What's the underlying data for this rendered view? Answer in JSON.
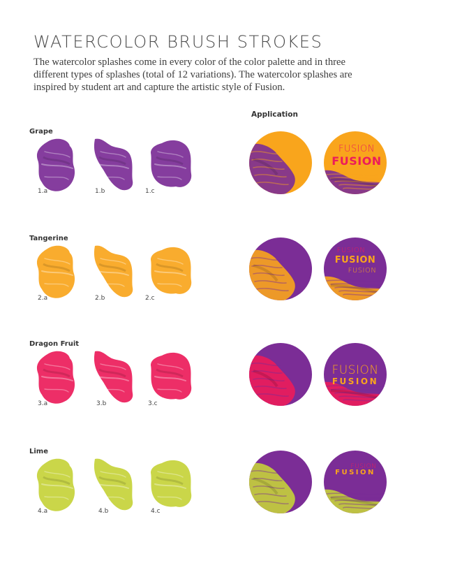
{
  "page": {
    "title": "WATERCOLOR BRUSH STROKES",
    "intro": "The watercolor splashes come in every color of the color palette and in three different types of splashes (total of 12 variations). The watercolor splashes are inspired by student art and capture the artistic style of Fusion.",
    "application_heading": "Application"
  },
  "colors": {
    "grape": "#7b2d96",
    "tangerine": "#f9a51c",
    "dragon_fruit": "#ec1c5a",
    "lime": "#c5d23a"
  },
  "sections": [
    {
      "name": "Grape",
      "color": "#7b2d96",
      "labels": [
        "1.a",
        "1.b",
        "1.c"
      ],
      "app1": {
        "bg": "#f9a51c",
        "splash": "#7b2d96"
      },
      "app2": {
        "bg": "#f9a51c",
        "splash": "#7b2d96",
        "lines": [
          "FUSION",
          "FUSION"
        ],
        "line_colors": [
          "#ec1c5a",
          "#ec1c5a"
        ]
      }
    },
    {
      "name": "Tangerine",
      "color": "#f9a51c",
      "labels": [
        "2.a",
        "2.b",
        "2.c"
      ],
      "app1": {
        "bg": "#7b2d96",
        "splash": "#f9a51c"
      },
      "app2": {
        "bg": "#7b2d96",
        "splash": "#f9a51c",
        "lines": [
          "FUSION",
          "FUSION",
          "FUSION"
        ],
        "line_colors": [
          "#ec1c5a",
          "#f9a51c",
          "#f9a51c"
        ]
      }
    },
    {
      "name": "Dragon Fruit",
      "color": "#ec1c5a",
      "labels": [
        "3.a",
        "3.b",
        "3.c"
      ],
      "app1": {
        "bg": "#7b2d96",
        "splash": "#ec1c5a"
      },
      "app2": {
        "bg": "#7b2d96",
        "splash": "#ec1c5a",
        "lines": [
          "FUSION",
          "FUSION"
        ],
        "line_colors": [
          "#f9a51c",
          "#f9a51c"
        ]
      }
    },
    {
      "name": "Lime",
      "color": "#c5d23a",
      "labels": [
        "4.a",
        "4.b",
        "4.c"
      ],
      "app1": {
        "bg": "#7b2d96",
        "splash": "#c5d23a"
      },
      "app2": {
        "bg": "#7b2d96",
        "splash": "#c5d23a",
        "lines": [
          "FUSION",
          "FUSION"
        ],
        "line_colors": [
          "#ec1c5a",
          "#f9a51c"
        ]
      }
    }
  ]
}
